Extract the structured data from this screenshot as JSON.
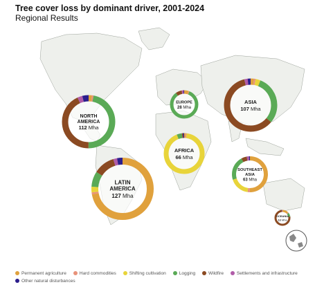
{
  "title": "Tree cover loss by dominant driver, 2001-2024",
  "subtitle": "Regional Results",
  "colors": {
    "permanent_agriculture": "#e0a13d",
    "hard_commodities": "#e8927a",
    "shifting_cultivation": "#e8d43a",
    "logging": "#5aaa56",
    "wildfire": "#8b4a22",
    "settlements": "#b05ca8",
    "other_natural": "#2c1e8c"
  },
  "chart_data": {
    "type": "pie",
    "unit": "Mha",
    "drivers": [
      "Permanent agriculture",
      "Hard commodities",
      "Shifting cultivation",
      "Logging",
      "Wildfire",
      "Settlements and infrastructure",
      "Other natural disturbances"
    ],
    "regions": [
      {
        "name": "NORTH AMERICA",
        "name_lines": [
          "NORTH",
          "AMERICA"
        ],
        "value": "112",
        "total": 112,
        "shares": [
          0.02,
          0.01,
          0.0,
          0.47,
          0.43,
          0.03,
          0.04
        ]
      },
      {
        "name": "EUROPE",
        "name_lines": [
          "EUROPE"
        ],
        "value": "28",
        "total": 28,
        "shares": [
          0.05,
          0.01,
          0.0,
          0.84,
          0.07,
          0.02,
          0.01
        ]
      },
      {
        "name": "ASIA",
        "name_lines": [
          "ASIA"
        ],
        "value": "107",
        "total": 107,
        "shares": [
          0.02,
          0.01,
          0.03,
          0.3,
          0.6,
          0.02,
          0.02
        ]
      },
      {
        "name": "AFRICA",
        "name_lines": [
          "AFRICA"
        ],
        "value": "66",
        "total": 66,
        "shares": [
          0.01,
          0.01,
          0.92,
          0.04,
          0.01,
          0.0,
          0.01
        ]
      },
      {
        "name": "LATIN AMERICA",
        "name_lines": [
          "LATIN",
          "AMERICA"
        ],
        "value": "127",
        "total": 127,
        "shares": [
          0.72,
          0.01,
          0.03,
          0.08,
          0.11,
          0.02,
          0.03
        ]
      },
      {
        "name": "SOUTHEAST ASIA",
        "name_lines": [
          "SOUTHEAST",
          "ASIA"
        ],
        "value": "63",
        "total": 63,
        "shares": [
          0.5,
          0.02,
          0.18,
          0.22,
          0.05,
          0.02,
          0.01
        ]
      },
      {
        "name": "OCEANIA",
        "name_lines": [
          "OCEANIA"
        ],
        "value": "13",
        "total": 13,
        "shares": [
          0.12,
          0.02,
          0.0,
          0.08,
          0.76,
          0.01,
          0.01
        ]
      }
    ]
  }
}
